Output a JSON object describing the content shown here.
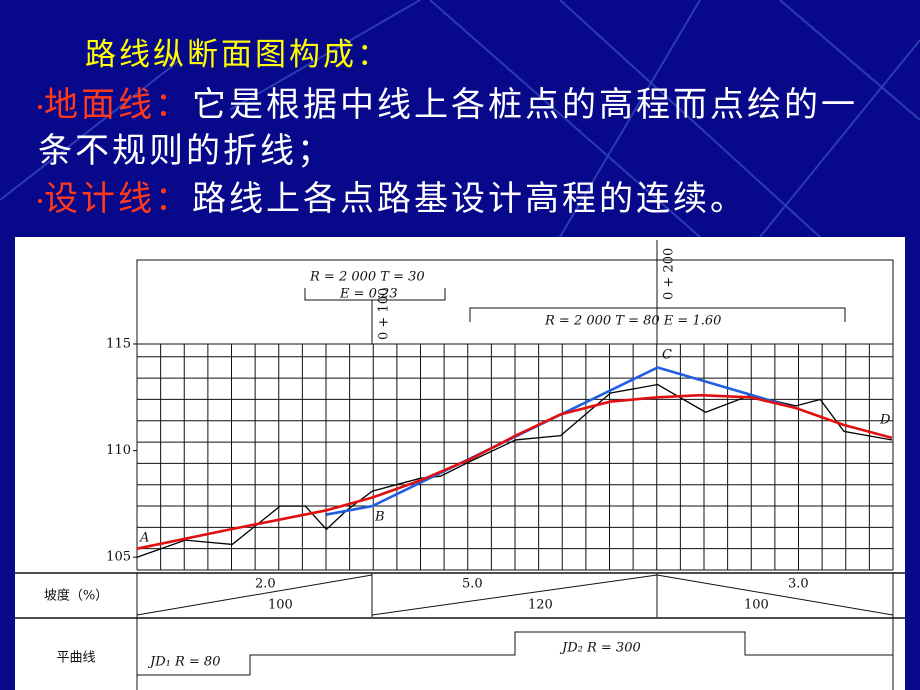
{
  "slide": {
    "title": "路线纵断面图构成：",
    "bullets": [
      {
        "term": "地面线：",
        "text": "它是根据中线上各桩点的高程而点绘的一条不规则的折线；"
      },
      {
        "term": "设计线：",
        "text": "路线上各点路基设计高程的连续。"
      }
    ]
  },
  "chart_data": {
    "type": "line",
    "xlim": [
      17.5,
      282.5
    ],
    "ylim": [
      104.4,
      115
    ],
    "yticks": [
      105,
      110,
      115
    ],
    "grid": true,
    "series": [
      {
        "color": "#000000",
        "x": [
          17.5,
          34.4,
          50.9,
          67.7,
          76.5,
          83.9,
          91,
          100,
          116.8,
          123.9,
          134.4,
          150.2,
          166.0,
          183.5,
          200,
          216.8,
          232.6,
          248.4,
          257,
          265.3,
          282.1
        ],
        "values": [
          105.0,
          105.8,
          105.6,
          107.4,
          107.4,
          106.3,
          107.2,
          108.1,
          108.7,
          108.8,
          109.5,
          110.5,
          110.7,
          112.7,
          113.1,
          111.8,
          112.6,
          112.1,
          112.4,
          110.9,
          110.5
        ]
      },
      {
        "color": "#1f5fe0",
        "x": [
          83.9,
          100,
          200,
          248.4
        ],
        "values": [
          107.0,
          107.4,
          113.9,
          112.0
        ]
      },
      {
        "color": "#e01010",
        "x": [
          17.5,
          50,
          83.9,
          100,
          116.8,
          134.4,
          150.2,
          166.0,
          183.5,
          200,
          215,
          232.6,
          248.4,
          265.3,
          282.1
        ],
        "values": [
          105.4,
          106.3,
          107.2,
          107.8,
          108.6,
          109.6,
          110.7,
          111.7,
          112.3,
          112.5,
          112.6,
          112.5,
          112.0,
          111.2,
          110.6
        ]
      }
    ],
    "point_labels": [
      "A",
      "B",
      "C",
      "D"
    ],
    "curve_notes": [
      "R = 2 000   T = 30",
      "E = 0.23",
      "R = 2 000   T = 80   E = 1.60"
    ],
    "stations": [
      "0 + 100",
      "0 + 200"
    ]
  },
  "grade_row": {
    "label": "坡度（%）",
    "segments": [
      {
        "grade": "2.0",
        "length": 100
      },
      {
        "grade": "5.0",
        "length": 120
      },
      {
        "grade": "3.0",
        "length": 100
      }
    ]
  },
  "curve_row": {
    "label": "平曲线",
    "items": [
      "JD₁   R = 80",
      "JD₂   R = 300"
    ]
  }
}
